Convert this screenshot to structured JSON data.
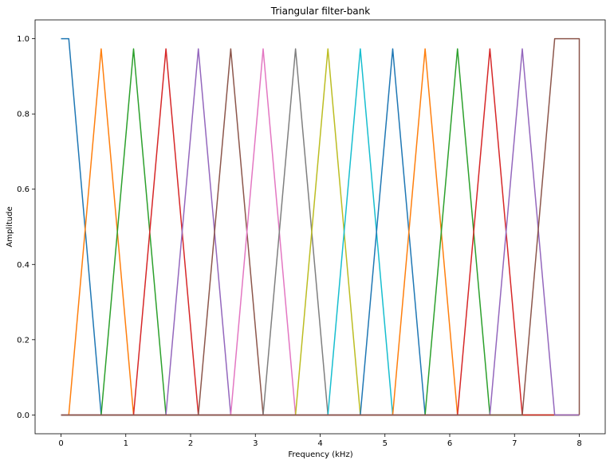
{
  "chart_data": {
    "type": "line",
    "title": "Triangular filter-bank",
    "xlabel": "Frequency (kHz)",
    "ylabel": "Amplitude",
    "xlim": [
      -0.4,
      8.4
    ],
    "ylim": [
      -0.05,
      1.05
    ],
    "xticks": [
      0,
      1,
      2,
      3,
      4,
      5,
      6,
      7,
      8
    ],
    "yticks": [
      0.0,
      0.2,
      0.4,
      0.6,
      0.8,
      1.0
    ],
    "xtick_labels": [
      "0",
      "1",
      "2",
      "3",
      "4",
      "5",
      "6",
      "7",
      "8"
    ],
    "ytick_labels": [
      "0.0",
      "0.2",
      "0.4",
      "0.6",
      "0.8",
      "1.0"
    ],
    "grid": false,
    "legend": "none",
    "series": [
      {
        "color": "#1f77b4",
        "points": [
          [
            0,
            1.0
          ],
          [
            0.12,
            1.0
          ],
          [
            0.62,
            0.0
          ],
          [
            8,
            0.0
          ]
        ]
      },
      {
        "color": "#ff7f0e",
        "points": [
          [
            0,
            0.0
          ],
          [
            0.12,
            0.0
          ],
          [
            0.62,
            0.973
          ],
          [
            1.12,
            0.0
          ],
          [
            8,
            0.0
          ]
        ]
      },
      {
        "color": "#2ca02c",
        "points": [
          [
            0,
            0.0
          ],
          [
            0.62,
            0.0
          ],
          [
            1.12,
            0.973
          ],
          [
            1.62,
            0.0
          ],
          [
            8,
            0.0
          ]
        ]
      },
      {
        "color": "#d62728",
        "points": [
          [
            0,
            0.0
          ],
          [
            1.12,
            0.0
          ],
          [
            1.62,
            0.973
          ],
          [
            2.12,
            0.0
          ],
          [
            8,
            0.0
          ]
        ]
      },
      {
        "color": "#9467bd",
        "points": [
          [
            0,
            0.0
          ],
          [
            1.62,
            0.0
          ],
          [
            2.12,
            0.973
          ],
          [
            2.62,
            0.0
          ],
          [
            8,
            0.0
          ]
        ]
      },
      {
        "color": "#8c564b",
        "points": [
          [
            0,
            0.0
          ],
          [
            2.12,
            0.0
          ],
          [
            2.62,
            0.973
          ],
          [
            3.12,
            0.0
          ],
          [
            8,
            0.0
          ]
        ]
      },
      {
        "color": "#e377c2",
        "points": [
          [
            0,
            0.0
          ],
          [
            2.62,
            0.0
          ],
          [
            3.12,
            0.973
          ],
          [
            3.62,
            0.0
          ],
          [
            8,
            0.0
          ]
        ]
      },
      {
        "color": "#7f7f7f",
        "points": [
          [
            0,
            0.0
          ],
          [
            3.12,
            0.0
          ],
          [
            3.62,
            0.973
          ],
          [
            4.12,
            0.0
          ],
          [
            8,
            0.0
          ]
        ]
      },
      {
        "color": "#bcbd22",
        "points": [
          [
            0,
            0.0
          ],
          [
            3.62,
            0.0
          ],
          [
            4.12,
            0.973
          ],
          [
            4.62,
            0.0
          ],
          [
            8,
            0.0
          ]
        ]
      },
      {
        "color": "#17becf",
        "points": [
          [
            0,
            0.0
          ],
          [
            4.12,
            0.0
          ],
          [
            4.62,
            0.973
          ],
          [
            5.12,
            0.0
          ],
          [
            8,
            0.0
          ]
        ]
      },
      {
        "color": "#1f77b4",
        "points": [
          [
            0,
            0.0
          ],
          [
            4.62,
            0.0
          ],
          [
            5.12,
            0.973
          ],
          [
            5.62,
            0.0
          ],
          [
            8,
            0.0
          ]
        ]
      },
      {
        "color": "#ff7f0e",
        "points": [
          [
            0,
            0.0
          ],
          [
            5.12,
            0.0
          ],
          [
            5.62,
            0.973
          ],
          [
            6.12,
            0.0
          ],
          [
            8,
            0.0
          ]
        ]
      },
      {
        "color": "#2ca02c",
        "points": [
          [
            0,
            0.0
          ],
          [
            5.62,
            0.0
          ],
          [
            6.12,
            0.973
          ],
          [
            6.62,
            0.0
          ],
          [
            8,
            0.0
          ]
        ]
      },
      {
        "color": "#d62728",
        "points": [
          [
            0,
            0.0
          ],
          [
            6.12,
            0.0
          ],
          [
            6.62,
            0.973
          ],
          [
            7.12,
            0.0
          ],
          [
            8,
            0.0
          ]
        ]
      },
      {
        "color": "#9467bd",
        "points": [
          [
            0,
            0.0
          ],
          [
            6.62,
            0.0
          ],
          [
            7.12,
            0.973
          ],
          [
            7.62,
            0.0
          ],
          [
            8,
            0.0
          ]
        ]
      },
      {
        "color": "#8c564b",
        "points": [
          [
            0,
            0.0
          ],
          [
            7.12,
            0.0
          ],
          [
            7.62,
            1.0
          ],
          [
            8,
            1.0
          ],
          [
            8,
            0.0
          ]
        ]
      }
    ]
  }
}
